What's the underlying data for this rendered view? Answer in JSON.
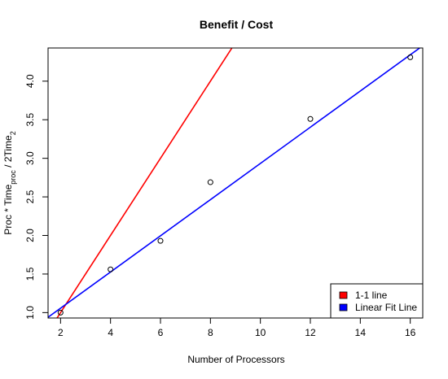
{
  "chart_data": {
    "type": "scatter",
    "title": "Benefit / Cost",
    "xlabel": "Number of Processors",
    "ylabel": {
      "parts": [
        {
          "text": "Proc * Time",
          "style": "normal"
        },
        {
          "text": "proc",
          "style": "sub"
        },
        {
          "text": " / 2Time",
          "style": "normal"
        },
        {
          "text": "2",
          "style": "sub"
        }
      ]
    },
    "xlim": [
      1.5,
      16.5
    ],
    "ylim": [
      0.93,
      4.43
    ],
    "xticks": [
      2,
      4,
      6,
      8,
      10,
      12,
      14,
      16
    ],
    "yticks": [
      1.0,
      1.5,
      2.0,
      2.5,
      3.0,
      3.5,
      4.0
    ],
    "ytick_labels": [
      "1.0",
      "1.5",
      "2.0",
      "2.5",
      "3.0",
      "3.5",
      "4.0"
    ],
    "points": {
      "x": [
        2,
        4,
        6,
        8,
        12,
        16
      ],
      "y": [
        1.0,
        1.56,
        1.93,
        2.69,
        3.51,
        4.31
      ],
      "marker": "open-circle"
    },
    "lines": [
      {
        "name": "1-1 line",
        "color": "#ff0000",
        "slope": 0.5,
        "intercept": 0.0
      },
      {
        "name": "Linear Fit Line",
        "color": "#0000ff",
        "slope": 0.2346,
        "intercept": 0.5878
      }
    ],
    "legend": {
      "placement": "bottom-right",
      "entries": [
        {
          "label": "1-1 line",
          "color": "#ff0000"
        },
        {
          "label": "Linear Fit Line",
          "color": "#0000ff"
        }
      ]
    },
    "grid": false
  }
}
